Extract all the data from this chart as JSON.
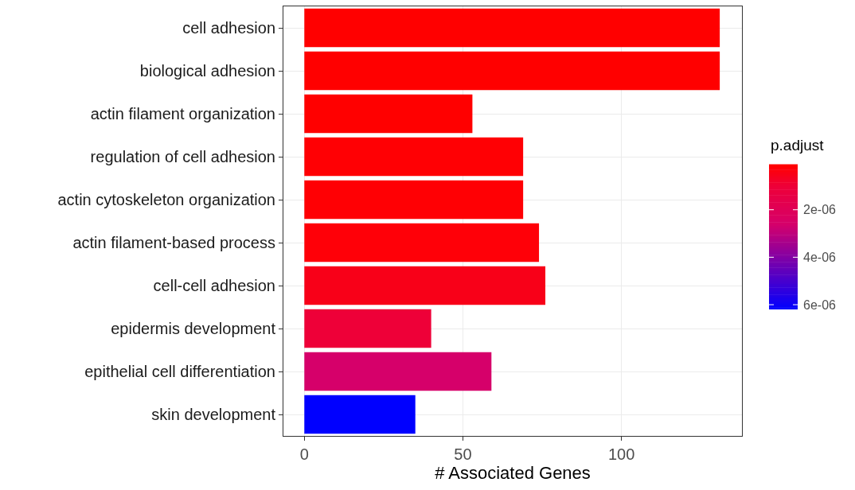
{
  "chart_data": {
    "type": "bar",
    "orientation": "horizontal",
    "xlabel": "# Associated Genes",
    "clabel": "p.adjust",
    "categories": [
      "cell adhesion",
      "biological adhesion",
      "actin filament organization",
      "regulation of cell adhesion",
      "actin cytoskeleton organization",
      "actin filament-based process",
      "cell-cell adhesion",
      "epidermis development",
      "epithelial cell differentiation",
      "skin development"
    ],
    "values": [
      131,
      131,
      53,
      69,
      69,
      74,
      76,
      40,
      59,
      35
    ],
    "cvalues": [
      1e-07,
      1e-07,
      1.5e-07,
      2e-07,
      2e-07,
      2.5e-07,
      5e-07,
      1e-06,
      2.6e-06,
      6.2e-06
    ],
    "colors": [
      "#ff0000",
      "#ff0000",
      "#ff0000",
      "#ff0004",
      "#ff0004",
      "#ff0008",
      "#f80018",
      "#ee0038",
      "#d6006a",
      "#0000ff"
    ],
    "clim": [
      6.2e-06,
      1e-07
    ],
    "cticks": [
      {
        "value": 2e-06,
        "label": "2e-06"
      },
      {
        "value": 4e-06,
        "label": "4e-06"
      },
      {
        "value": 6e-06,
        "label": "6e-06"
      }
    ],
    "xlim": [
      -6.6,
      138
    ],
    "xticks": [
      0,
      50,
      100
    ],
    "grid": true
  }
}
